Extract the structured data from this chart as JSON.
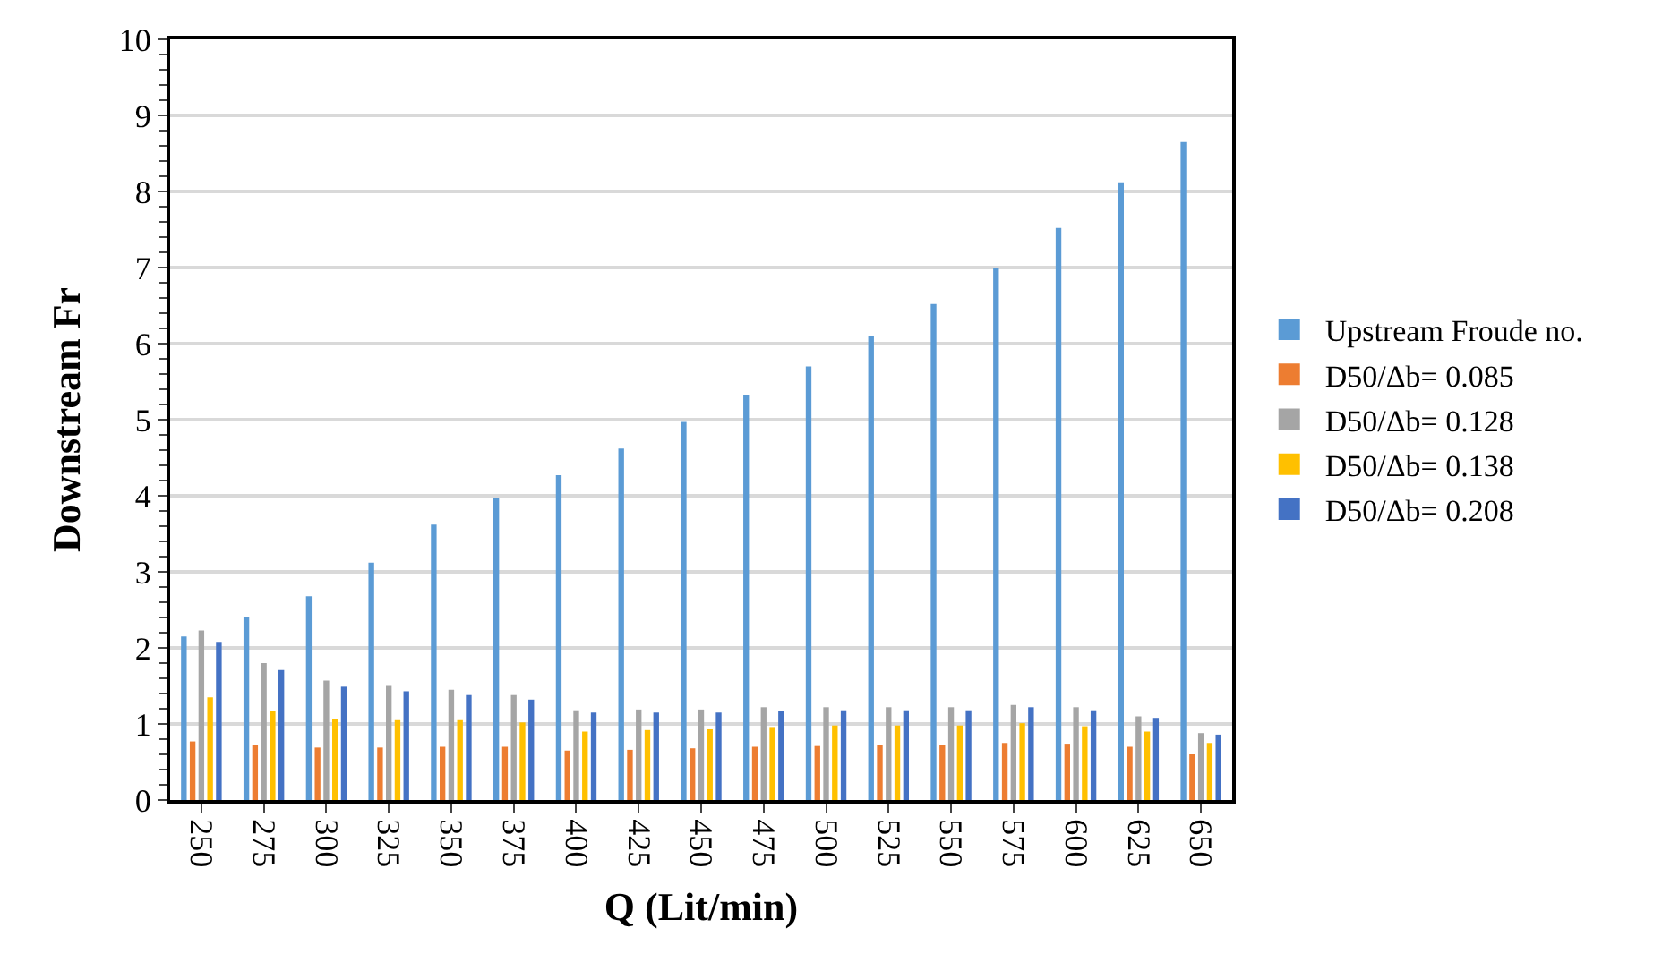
{
  "chart_data": {
    "type": "bar",
    "xlabel": "Q (Lit/min)",
    "ylabel": "Downstream Fr",
    "categories": [
      "250",
      "275",
      "300",
      "325",
      "350",
      "375",
      "400",
      "425",
      "450",
      "475",
      "500",
      "525",
      "550",
      "575",
      "600",
      "625",
      "650"
    ],
    "ylim": [
      0,
      10
    ],
    "yticks": [
      0,
      1,
      2,
      3,
      4,
      5,
      6,
      7,
      8,
      9,
      10
    ],
    "grid": "y",
    "legend": "right",
    "series": [
      {
        "name": "Upstream Froude no.",
        "color": "#5b9bd5",
        "values": [
          2.15,
          2.4,
          2.68,
          3.12,
          3.62,
          3.97,
          4.27,
          4.62,
          4.97,
          5.33,
          5.7,
          6.1,
          6.52,
          7.0,
          7.52,
          8.12,
          8.65
        ]
      },
      {
        "name": "D50/Δb= 0.085",
        "color": "#ed7d31",
        "values": [
          0.77,
          0.72,
          0.69,
          0.69,
          0.7,
          0.7,
          0.65,
          0.66,
          0.68,
          0.7,
          0.71,
          0.72,
          0.72,
          0.75,
          0.74,
          0.7,
          0.6
        ]
      },
      {
        "name": "D50/Δb= 0.128",
        "color": "#a5a5a5",
        "values": [
          2.23,
          1.8,
          1.57,
          1.5,
          1.45,
          1.38,
          1.18,
          1.19,
          1.19,
          1.22,
          1.22,
          1.22,
          1.22,
          1.25,
          1.22,
          1.1,
          0.88
        ]
      },
      {
        "name": "D50/Δb= 0.138",
        "color": "#ffc000",
        "values": [
          1.35,
          1.17,
          1.07,
          1.05,
          1.05,
          1.02,
          0.9,
          0.92,
          0.93,
          0.96,
          0.98,
          0.98,
          0.98,
          1.01,
          0.97,
          0.9,
          0.75
        ]
      },
      {
        "name": "D50/Δb= 0.208",
        "color": "#4472c4",
        "values": [
          2.08,
          1.71,
          1.49,
          1.43,
          1.38,
          1.32,
          1.15,
          1.15,
          1.15,
          1.17,
          1.18,
          1.18,
          1.18,
          1.22,
          1.18,
          1.08,
          0.86
        ]
      }
    ]
  }
}
